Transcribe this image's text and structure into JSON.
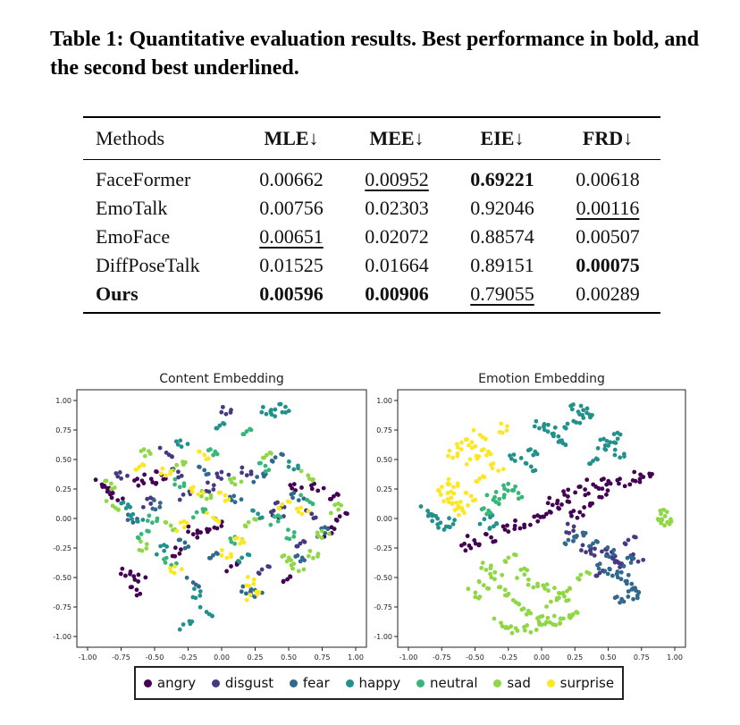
{
  "caption": "Table 1: Quantitative evaluation results. Best performance in bold, and the second best underlined.",
  "table": {
    "headers": [
      "Methods",
      "MLE↓",
      "MEE↓",
      "EIE↓",
      "FRD↓"
    ],
    "rows": [
      {
        "method": "FaceFormer",
        "mle": "0.00662",
        "mee": "0.00952",
        "eie": "0.69221",
        "frd": "0.00618"
      },
      {
        "method": "EmoTalk",
        "mle": "0.00756",
        "mee": "0.02303",
        "eie": "0.92046",
        "frd": "0.00116"
      },
      {
        "method": "EmoFace",
        "mle": "0.00651",
        "mee": "0.02072",
        "eie": "0.88574",
        "frd": "0.00507"
      },
      {
        "method": "DiffPoseTalk",
        "mle": "0.01525",
        "mee": "0.01664",
        "eie": "0.89151",
        "frd": "0.00075"
      },
      {
        "method": "Ours",
        "mle": "0.00596",
        "mee": "0.00906",
        "eie": "0.79055",
        "frd": "0.00289"
      }
    ]
  },
  "chart_data": [
    {
      "type": "scatter",
      "title": "Content Embedding",
      "xlim": [
        -1.0,
        1.0
      ],
      "ylim": [
        -1.0,
        1.0
      ],
      "xticks": [
        "-1.00",
        "-0.75",
        "-0.50",
        "-0.25",
        "0.00",
        "0.25",
        "0.50",
        "0.75",
        "1.00"
      ],
      "yticks": [
        "1.00",
        "0.75",
        "0.50",
        "0.25",
        "0.00",
        "-0.25",
        "-0.50",
        "-0.75",
        "-1.00"
      ],
      "series": [
        {
          "name": "angry",
          "x": [
            -0.7,
            -0.62,
            -0.66,
            -0.88,
            -0.84,
            -0.8,
            -0.04,
            -0.12,
            0.85,
            0.88,
            0.8,
            -0.2,
            0.55,
            -0.47,
            -0.52,
            -0.6,
            0.7,
            -0.35,
            0.1,
            0.5
          ],
          "y": [
            -0.45,
            -0.52,
            -0.6,
            0.28,
            0.24,
            0.2,
            -0.06,
            -0.12,
            0.2,
            0.0,
            -0.1,
            -0.1,
            0.25,
            0.38,
            0.32,
            0.3,
            0.28,
            -0.3,
            -0.4,
            -0.5
          ]
        },
        {
          "name": "disgust",
          "x": [
            0.05,
            0.0,
            -0.35,
            -0.4,
            0.45,
            0.4,
            -0.1,
            -0.25,
            0.6,
            0.3,
            -0.55,
            0.2,
            -0.75,
            0.65
          ],
          "y": [
            0.92,
            0.35,
            0.4,
            0.55,
            0.1,
            0.05,
            0.25,
            0.2,
            -0.2,
            -0.45,
            0.15,
            0.4,
            0.35,
            0.05
          ]
        },
        {
          "name": "fear",
          "x": [
            0.2,
            0.25,
            -0.3,
            -0.2,
            0.6,
            0.55,
            -0.5,
            0.3,
            -0.05,
            0.4,
            0.75,
            -0.65,
            0.1,
            -0.15
          ],
          "y": [
            -0.6,
            -0.65,
            -0.2,
            -0.55,
            -0.35,
            0.2,
            0.1,
            0.35,
            -0.3,
            0.5,
            -0.1,
            0.0,
            0.15,
            0.42
          ]
        },
        {
          "name": "happy",
          "x": [
            0.35,
            0.4,
            0.45,
            -0.1,
            -0.7,
            -0.65,
            -0.2,
            -0.25,
            0.0,
            0.15,
            -0.45,
            0.55,
            -0.3,
            0.25
          ],
          "y": [
            0.92,
            0.88,
            0.95,
            -0.8,
            0.1,
            0.02,
            -0.65,
            -0.9,
            0.8,
            -0.35,
            -0.25,
            0.45,
            0.62,
            0.05
          ]
        },
        {
          "name": "neutral",
          "x": [
            -0.5,
            0.1,
            0.3,
            0.65,
            -0.05,
            -0.4,
            0.5,
            -0.15,
            0.2,
            -0.6,
            0.4,
            -0.3
          ],
          "y": [
            0.0,
            -0.2,
            0.45,
            0.15,
            0.55,
            -0.35,
            -0.15,
            0.05,
            0.75,
            -0.15,
            0.0,
            0.3
          ]
        },
        {
          "name": "sad",
          "x": [
            0.7,
            0.75,
            -0.85,
            -0.8,
            0.5,
            0.55,
            -0.6,
            -0.3,
            0.35,
            0.2,
            0.85,
            -0.1,
            0.1,
            -0.4,
            0.65,
            -0.55
          ],
          "y": [
            -0.3,
            -0.15,
            0.3,
            0.1,
            -0.35,
            -0.4,
            -0.25,
            0.45,
            0.55,
            -0.05,
            0.1,
            0.2,
            0.3,
            -0.05,
            0.35,
            0.55
          ]
        },
        {
          "name": "surprise",
          "x": [
            -0.4,
            -0.35,
            0.0,
            -0.05,
            0.15,
            -0.2,
            0.2,
            0.25,
            -0.6,
            0.45,
            -0.3,
            0.05,
            0.6,
            -0.15
          ],
          "y": [
            0.4,
            -0.45,
            0.2,
            0.0,
            -0.2,
            0.25,
            -0.55,
            -0.65,
            0.45,
            0.1,
            -0.05,
            -0.3,
            0.05,
            0.55
          ]
        }
      ]
    },
    {
      "type": "scatter",
      "title": "Emotion Embedding",
      "xlim": [
        -1.0,
        1.0
      ],
      "ylim": [
        -1.0,
        1.0
      ],
      "xticks": [
        "-1.00",
        "-0.75",
        "-0.50",
        "-0.25",
        "0.00",
        "0.25",
        "0.50",
        "0.75",
        "1.00"
      ],
      "yticks": [
        "1.00",
        "0.75",
        "0.50",
        "0.25",
        "0.00",
        "-0.25",
        "-0.50",
        "-0.75",
        "-1.00"
      ],
      "series": [
        {
          "name": "angry",
          "x": [
            0.1,
            0.2,
            0.3,
            0.4,
            0.5,
            0.6,
            0.7,
            0.8,
            0.05,
            0.15,
            -0.05,
            -0.15,
            -0.25,
            -0.4,
            -0.5,
            -0.55,
            0.25,
            0.45,
            0.35
          ],
          "y": [
            0.15,
            0.2,
            0.25,
            0.28,
            0.3,
            0.32,
            0.34,
            0.35,
            0.05,
            0.1,
            0.0,
            -0.05,
            -0.1,
            -0.15,
            -0.2,
            -0.25,
            0.05,
            0.2,
            0.1
          ]
        },
        {
          "name": "disgust",
          "x": [
            0.35,
            0.4,
            0.5,
            0.55,
            0.6,
            0.7,
            0.2,
            0.3,
            0.45,
            0.65
          ],
          "y": [
            -0.25,
            -0.3,
            -0.28,
            -0.35,
            -0.4,
            -0.32,
            -0.1,
            -0.15,
            -0.45,
            -0.2
          ]
        },
        {
          "name": "fear",
          "x": [
            0.55,
            0.6,
            0.65,
            0.7,
            0.6,
            0.45,
            0.5,
            0.3,
            0.4,
            0.2,
            0.65,
            0.7
          ],
          "y": [
            -0.45,
            -0.5,
            -0.55,
            -0.6,
            -0.7,
            -0.4,
            -0.3,
            -0.15,
            -0.2,
            -0.2,
            -0.35,
            -0.65
          ]
        },
        {
          "name": "happy",
          "x": [
            0.0,
            0.05,
            0.1,
            0.15,
            -0.05,
            0.25,
            0.3,
            0.35,
            0.4,
            0.5,
            0.55,
            0.6,
            -0.2,
            -0.1,
            -0.85,
            -0.8,
            -0.75,
            -0.7,
            -0.4,
            -0.35,
            0.2,
            0.45
          ],
          "y": [
            0.8,
            0.75,
            0.7,
            0.65,
            0.55,
            0.95,
            0.9,
            0.85,
            0.5,
            0.6,
            0.7,
            0.55,
            0.5,
            0.45,
            0.05,
            0.0,
            -0.05,
            -0.05,
            0.0,
            -0.05,
            0.78,
            0.65
          ]
        },
        {
          "name": "neutral",
          "x": [
            -0.3,
            -0.25,
            -0.2,
            -0.35,
            -0.4
          ],
          "y": [
            0.2,
            0.25,
            0.22,
            0.15,
            0.05
          ]
        },
        {
          "name": "sad",
          "x": [
            -0.4,
            -0.35,
            -0.3,
            -0.2,
            -0.1,
            0.0,
            0.1,
            0.2,
            0.25,
            -0.25,
            -0.15,
            -0.05,
            0.05,
            0.15,
            -0.3,
            -0.2,
            -0.1,
            0.0,
            0.1,
            0.2,
            0.3,
            0.9,
            0.95,
            0.92,
            -0.45,
            -0.5
          ],
          "y": [
            -0.4,
            -0.5,
            -0.6,
            -0.7,
            -0.8,
            -0.85,
            -0.88,
            -0.85,
            -0.8,
            -0.35,
            -0.45,
            -0.55,
            -0.6,
            -0.65,
            -0.9,
            -0.95,
            -0.92,
            -0.88,
            -0.7,
            -0.6,
            -0.5,
            0.05,
            0.0,
            -0.05,
            -0.55,
            -0.65
          ]
        },
        {
          "name": "surprise",
          "x": [
            -0.65,
            -0.6,
            -0.55,
            -0.45,
            -0.4,
            -0.35,
            -0.3,
            -0.5,
            -0.45,
            -0.75,
            -0.7,
            -0.65,
            -0.6,
            -0.55,
            -0.7,
            -0.6
          ],
          "y": [
            0.55,
            0.6,
            0.65,
            0.7,
            0.55,
            0.45,
            0.75,
            0.5,
            0.35,
            0.25,
            0.2,
            0.3,
            0.1,
            0.2,
            0.15,
            0.05
          ]
        }
      ],
      "legend_position": "bottom"
    }
  ],
  "legend": [
    {
      "name": "angry",
      "color": "#440154"
    },
    {
      "name": "disgust",
      "color": "#443983"
    },
    {
      "name": "fear",
      "color": "#31688e"
    },
    {
      "name": "happy",
      "color": "#21918c"
    },
    {
      "name": "neutral",
      "color": "#35b779"
    },
    {
      "name": "sad",
      "color": "#8fd744"
    },
    {
      "name": "surprise",
      "color": "#fde725"
    }
  ]
}
